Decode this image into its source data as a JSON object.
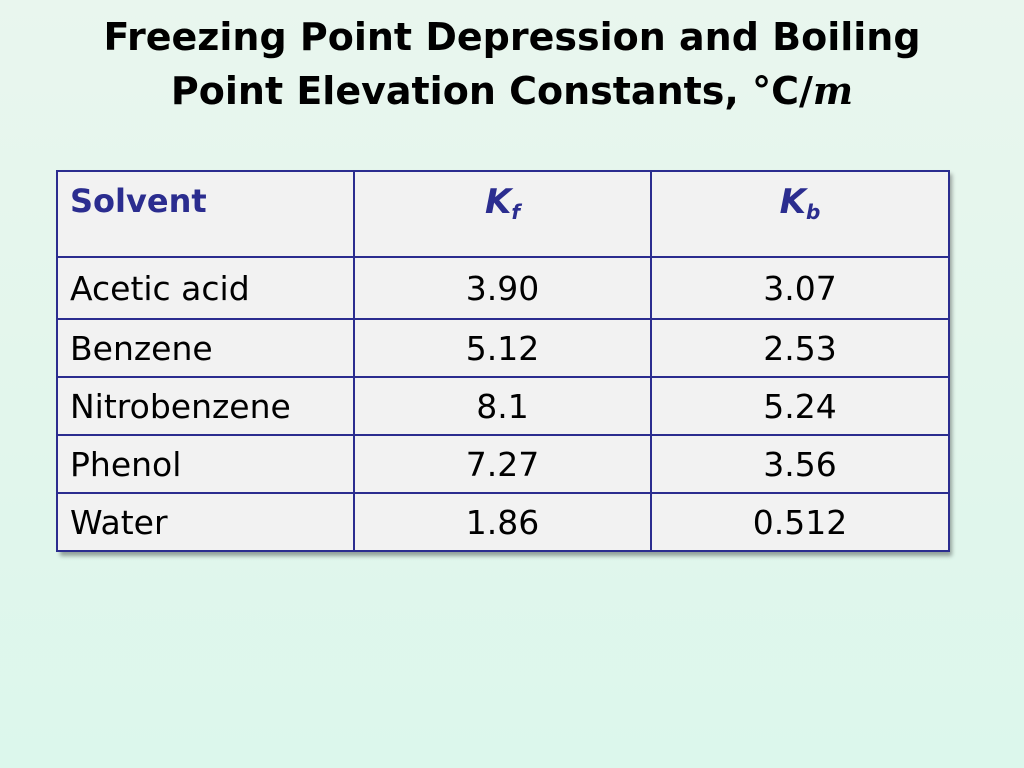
{
  "title": {
    "line1": "Freezing Point Depression and Boiling",
    "line2_text": "Point Elevation Constants, °C/",
    "line2_unit": "m"
  },
  "table": {
    "headers": {
      "solvent": "Solvent",
      "kf_letter": "K",
      "kf_sub": "f",
      "kb_letter": "K",
      "kb_sub": "b"
    },
    "rows": [
      {
        "solvent": "Acetic acid",
        "kf": "3.90",
        "kb": "3.07"
      },
      {
        "solvent": "Benzene",
        "kf": "5.12",
        "kb": "2.53"
      },
      {
        "solvent": "Nitrobenzene",
        "kf": "8.1",
        "kb": "5.24"
      },
      {
        "solvent": "Phenol",
        "kf": "7.27",
        "kb": "3.56"
      },
      {
        "solvent": "Water",
        "kf": "1.86",
        "kb": "0.512"
      }
    ]
  },
  "colors": {
    "border": "#2b2d8f",
    "header_text": "#2b2d8f",
    "cell_background": "#f2f2f2"
  }
}
